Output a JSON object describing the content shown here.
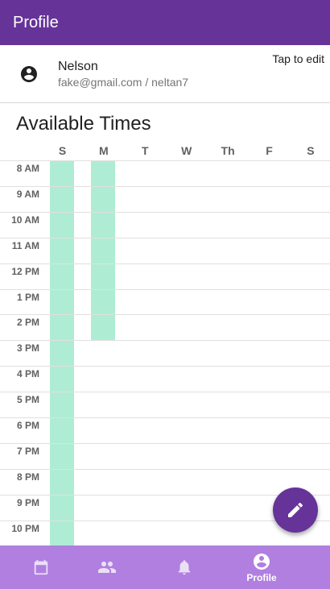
{
  "app_bar": {
    "title": "Profile"
  },
  "profile": {
    "name": "Nelson",
    "subtitle": "fake@gmail.com / neltan7",
    "edit_hint": "Tap to edit",
    "avatar_icon": "account-circle-icon"
  },
  "availability": {
    "title": "Available Times",
    "days": [
      "S",
      "M",
      "T",
      "W",
      "Th",
      "F",
      "S"
    ],
    "hours": [
      "8 AM",
      "9 AM",
      "10 AM",
      "11 AM",
      "12 PM",
      "1 PM",
      "2 PM",
      "3 PM",
      "4 PM",
      "5 PM",
      "6 PM",
      "7 PM",
      "8 PM",
      "9 PM",
      "10 PM"
    ],
    "slots": [
      {
        "day_index": 0,
        "start": "8 AM",
        "end": "11 PM"
      },
      {
        "day_index": 1,
        "start": "8 AM",
        "end": "3 PM"
      }
    ],
    "slot_color": "#aeedd4"
  },
  "fab": {
    "icon": "pencil-icon"
  },
  "bottom_nav": {
    "items": [
      {
        "icon": "calendar-icon",
        "label": ""
      },
      {
        "icon": "people-icon",
        "label": ""
      },
      {
        "icon": "bell-icon",
        "label": ""
      },
      {
        "icon": "account-circle-icon",
        "label": "Profile",
        "active": true
      }
    ]
  },
  "colors": {
    "primary": "#663399",
    "nav_bg": "#b07fe0",
    "accent": "#aeedd4"
  }
}
